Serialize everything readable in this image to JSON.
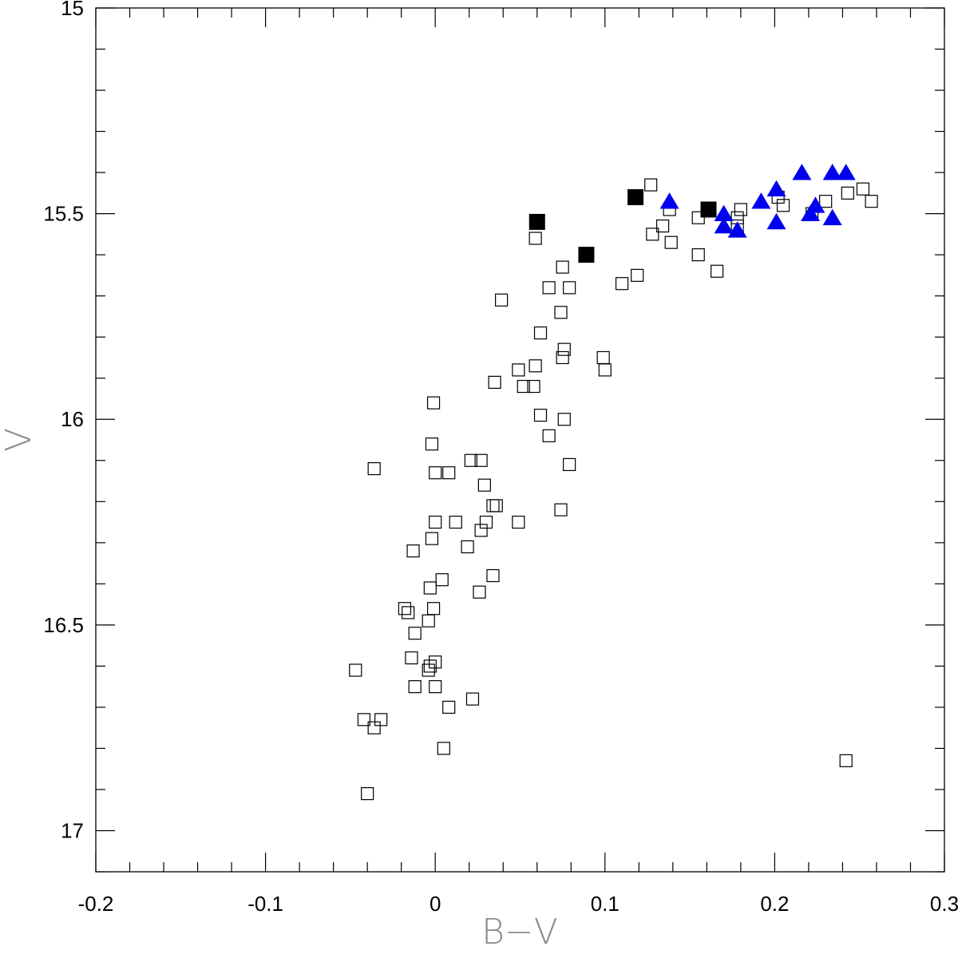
{
  "chart_data": {
    "type": "scatter",
    "title": "",
    "xlabel": "B−V",
    "ylabel": "V",
    "xlim": [
      -0.2,
      0.3
    ],
    "ylim": [
      17.1,
      15.0
    ],
    "y_inverted": true,
    "grid": false,
    "x_ticks": [
      "-0.2",
      "-0.1",
      "0",
      "0.1",
      "0.2",
      "0.3"
    ],
    "y_ticks": [
      "15",
      "15.5",
      "16",
      "16.5",
      "17"
    ],
    "colors": {
      "open": "#000000",
      "filled_square": "#000000",
      "triangle": "#0000ee"
    },
    "series": [
      {
        "marker": "open-square",
        "points": [
          [
            0.127,
            15.43
          ],
          [
            0.252,
            15.44
          ],
          [
            0.243,
            15.45
          ],
          [
            0.257,
            15.47
          ],
          [
            0.23,
            15.47
          ],
          [
            0.205,
            15.48
          ],
          [
            0.202,
            15.46
          ],
          [
            0.222,
            15.5
          ],
          [
            0.18,
            15.49
          ],
          [
            0.138,
            15.49
          ],
          [
            0.155,
            15.51
          ],
          [
            0.178,
            15.51
          ],
          [
            0.134,
            15.53
          ],
          [
            0.178,
            15.53
          ],
          [
            0.128,
            15.55
          ],
          [
            0.139,
            15.57
          ],
          [
            0.059,
            15.56
          ],
          [
            0.155,
            15.6
          ],
          [
            0.075,
            15.63
          ],
          [
            0.119,
            15.65
          ],
          [
            0.166,
            15.64
          ],
          [
            0.11,
            15.67
          ],
          [
            0.067,
            15.68
          ],
          [
            0.079,
            15.68
          ],
          [
            0.039,
            15.71
          ],
          [
            0.074,
            15.74
          ],
          [
            0.062,
            15.79
          ],
          [
            0.076,
            15.83
          ],
          [
            0.075,
            15.85
          ],
          [
            0.099,
            15.85
          ],
          [
            0.1,
            15.88
          ],
          [
            0.049,
            15.88
          ],
          [
            0.059,
            15.87
          ],
          [
            0.035,
            15.91
          ],
          [
            0.052,
            15.92
          ],
          [
            0.058,
            15.92
          ],
          [
            -0.001,
            15.96
          ],
          [
            0.062,
            15.99
          ],
          [
            0.076,
            16.0
          ],
          [
            0.067,
            16.04
          ],
          [
            -0.002,
            16.06
          ],
          [
            0.021,
            16.1
          ],
          [
            0.027,
            16.1
          ],
          [
            0.079,
            16.11
          ],
          [
            -0.036,
            16.12
          ],
          [
            0.0,
            16.13
          ],
          [
            0.008,
            16.13
          ],
          [
            0.029,
            16.16
          ],
          [
            0.034,
            16.21
          ],
          [
            0.036,
            16.21
          ],
          [
            0.074,
            16.22
          ],
          [
            0.0,
            16.25
          ],
          [
            0.012,
            16.25
          ],
          [
            0.03,
            16.25
          ],
          [
            0.049,
            16.25
          ],
          [
            0.027,
            16.27
          ],
          [
            -0.002,
            16.29
          ],
          [
            0.019,
            16.31
          ],
          [
            -0.013,
            16.32
          ],
          [
            0.004,
            16.39
          ],
          [
            0.034,
            16.38
          ],
          [
            -0.003,
            16.41
          ],
          [
            0.026,
            16.42
          ],
          [
            -0.001,
            16.46
          ],
          [
            -0.018,
            16.46
          ],
          [
            -0.016,
            16.47
          ],
          [
            -0.004,
            16.49
          ],
          [
            -0.012,
            16.52
          ],
          [
            -0.014,
            16.58
          ],
          [
            -0.003,
            16.6
          ],
          [
            0.0,
            16.59
          ],
          [
            -0.004,
            16.61
          ],
          [
            -0.047,
            16.61
          ],
          [
            -0.012,
            16.65
          ],
          [
            0.0,
            16.65
          ],
          [
            0.022,
            16.68
          ],
          [
            0.008,
            16.7
          ],
          [
            -0.042,
            16.73
          ],
          [
            -0.032,
            16.73
          ],
          [
            -0.036,
            16.75
          ],
          [
            0.005,
            16.8
          ],
          [
            0.242,
            16.83
          ],
          [
            -0.04,
            16.91
          ]
        ]
      },
      {
        "marker": "filled-square",
        "points": [
          [
            0.118,
            15.46
          ],
          [
            0.161,
            15.49
          ],
          [
            0.06,
            15.52
          ],
          [
            0.089,
            15.6
          ]
        ]
      },
      {
        "marker": "filled-triangle",
        "points": [
          [
            0.216,
            15.4
          ],
          [
            0.234,
            15.4
          ],
          [
            0.242,
            15.4
          ],
          [
            0.201,
            15.44
          ],
          [
            0.138,
            15.47
          ],
          [
            0.192,
            15.47
          ],
          [
            0.224,
            15.48
          ],
          [
            0.17,
            15.5
          ],
          [
            0.221,
            15.5
          ],
          [
            0.201,
            15.52
          ],
          [
            0.234,
            15.51
          ],
          [
            0.17,
            15.53
          ],
          [
            0.178,
            15.54
          ]
        ]
      }
    ]
  }
}
